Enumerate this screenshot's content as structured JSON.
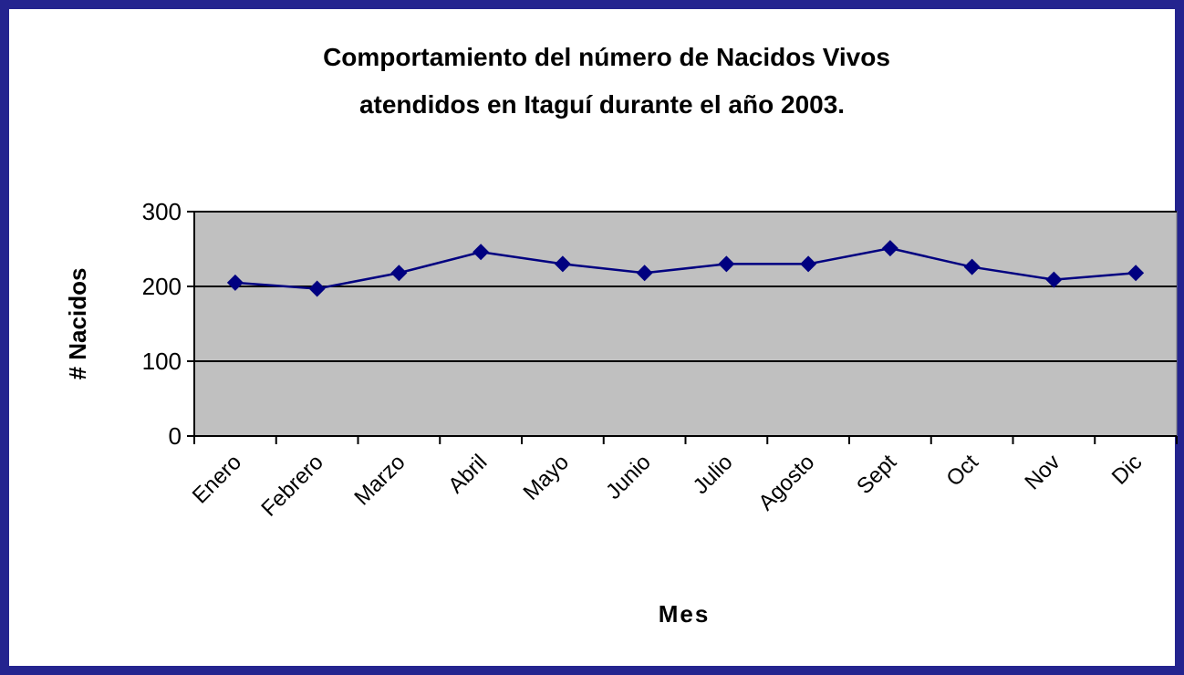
{
  "chart_data": {
    "type": "line",
    "title": [
      "Comportamiento del número de Nacidos Vivos",
      "atendidos en Itaguí durante el año 2003."
    ],
    "x_label": "Mes",
    "y_label": "# Nacidos",
    "categories": [
      "Enero",
      "Febrero",
      "Marzo",
      "Abril",
      "Mayo",
      "Junio",
      "Julio",
      "Agosto",
      "Sept",
      "Oct",
      "Nov",
      "Dic"
    ],
    "values": [
      205,
      197,
      218,
      246,
      230,
      218,
      230,
      230,
      251,
      226,
      209,
      218
    ],
    "color": "#000080",
    "ylim": [
      0,
      300
    ],
    "yticks": [
      0,
      100,
      200,
      300
    ],
    "grid": true
  }
}
